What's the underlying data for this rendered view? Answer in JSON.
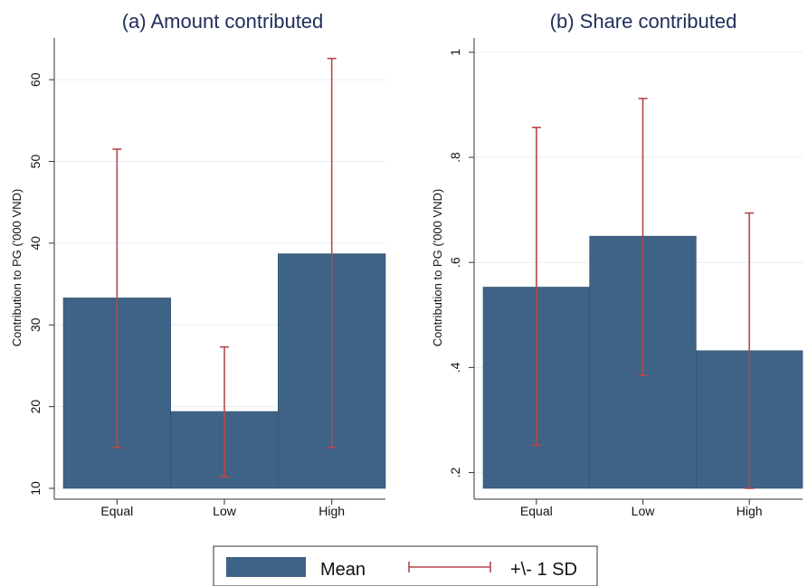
{
  "colors": {
    "bar": "#3f6386",
    "bar_stroke": "#2f4f6e",
    "error_bar": "#b5474a",
    "grid": "#e8edf2",
    "axis": "#333333"
  },
  "legend": {
    "mean_label": "Mean",
    "sd_label": "+\\- 1 SD",
    "placement": "bottom-center"
  },
  "chart_data": [
    {
      "type": "bar",
      "title": "(a) Amount contributed",
      "ylabel": "Contribution to PG ('000 VND)",
      "categories": [
        "Equal",
        "Low",
        "High"
      ],
      "ylim": [
        10,
        64
      ],
      "yticks": [
        10,
        20,
        30,
        40,
        50,
        60
      ],
      "ytick_labels": [
        "10",
        "20",
        "30",
        "40",
        "50",
        "60"
      ],
      "grid": true,
      "series": [
        {
          "name": "Mean",
          "values": [
            33.3,
            19.4,
            38.7
          ]
        },
        {
          "name": "+\\- 1 SD",
          "lower": [
            15.0,
            11.4,
            15.0
          ],
          "upper": [
            51.5,
            27.3,
            62.6
          ]
        }
      ]
    },
    {
      "type": "bar",
      "title": "(b) Share contributed",
      "ylabel": "Contribution to PG ('000 VND)",
      "categories": [
        "Equal",
        "Low",
        "High"
      ],
      "ylim": [
        0.17,
        1.01
      ],
      "yticks": [
        0.2,
        0.4,
        0.6,
        0.8,
        1.0
      ],
      "ytick_labels": [
        ".2",
        ".4",
        ".6",
        ".8",
        "1"
      ],
      "grid": true,
      "series": [
        {
          "name": "Mean",
          "values": [
            0.553,
            0.65,
            0.432
          ]
        },
        {
          "name": "+\\- 1 SD",
          "lower": [
            0.252,
            0.385,
            0.17
          ],
          "upper": [
            0.857,
            0.912,
            0.694
          ]
        }
      ]
    }
  ]
}
